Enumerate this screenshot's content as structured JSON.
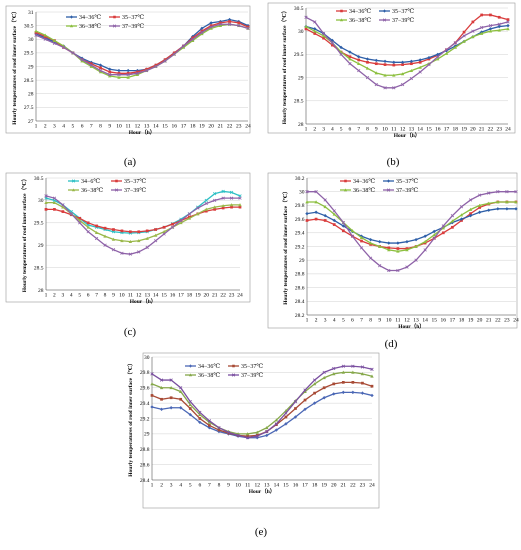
{
  "figure": {
    "panel_labels": [
      "(a)",
      "(b)",
      "(c)",
      "(d)",
      "(e)"
    ]
  },
  "colors": {
    "34_36": "#2e5fa8",
    "35_37": "#d93c3c",
    "36_38": "#8cbf3f",
    "37_39": "#8e62a8",
    "c_s1": "#2bbfc4",
    "c_s2": "#d93c3c",
    "c_s3": "#9ab84a",
    "c_s4": "#8e62a8",
    "e_s1": "#4a67b5",
    "e_s2": "#a84a35",
    "e_s3": "#86a84a",
    "e_s4": "#7a4fa0"
  },
  "chart_data": [
    {
      "panel": "(a)",
      "type": "line",
      "xlabel": "Hour（h）",
      "ylabel": "Hourly temperatures of roof inner surface（℃）",
      "x": [
        1,
        2,
        3,
        4,
        5,
        6,
        7,
        8,
        9,
        10,
        11,
        12,
        13,
        14,
        15,
        16,
        17,
        18,
        19,
        20,
        21,
        22,
        23,
        24
      ],
      "ylim": [
        27,
        31
      ],
      "yticks": [
        "27",
        "27.5",
        "28",
        "28.5",
        "29",
        "29.5",
        "30",
        "30.5",
        "31"
      ],
      "grid": true,
      "legend_position": "top-left",
      "series": [
        {
          "name": "34−36℃",
          "color_key": "34_36",
          "marker": "diamond",
          "values": [
            30.2,
            30.05,
            29.9,
            29.75,
            29.5,
            29.3,
            29.15,
            29.05,
            28.9,
            28.85,
            28.85,
            28.85,
            28.9,
            29.05,
            29.25,
            29.5,
            29.75,
            30.1,
            30.4,
            30.6,
            30.65,
            30.72,
            30.65,
            30.5
          ]
        },
        {
          "name": "35−37℃",
          "color_key": "35_37",
          "marker": "square",
          "values": [
            30.25,
            30.1,
            29.95,
            29.7,
            29.5,
            29.25,
            29.1,
            28.95,
            28.8,
            28.75,
            28.75,
            28.8,
            28.9,
            29.05,
            29.25,
            29.5,
            29.75,
            30.05,
            30.3,
            30.5,
            30.6,
            30.65,
            30.6,
            30.45
          ]
        },
        {
          "name": "36−38℃",
          "color_key": "36_38",
          "marker": "triangle",
          "values": [
            30.3,
            30.15,
            29.95,
            29.75,
            29.5,
            29.2,
            29.0,
            28.8,
            28.65,
            28.6,
            28.6,
            28.7,
            28.85,
            29.0,
            29.2,
            29.45,
            29.7,
            29.95,
            30.2,
            30.4,
            30.5,
            30.55,
            30.5,
            30.4
          ]
        },
        {
          "name": "37−39℃",
          "color_key": "37_39",
          "marker": "x",
          "values": [
            30.15,
            30.0,
            29.85,
            29.7,
            29.5,
            29.25,
            29.05,
            28.85,
            28.7,
            28.7,
            28.7,
            28.75,
            28.85,
            29.0,
            29.2,
            29.45,
            29.75,
            30.0,
            30.25,
            30.45,
            30.55,
            30.55,
            30.5,
            30.4
          ]
        }
      ]
    },
    {
      "panel": "(b)",
      "type": "line",
      "xlabel": "Hour（h）",
      "ylabel": "Hourly temperatures of roof inner surface（℃）",
      "x": [
        1,
        2,
        3,
        4,
        5,
        6,
        7,
        8,
        9,
        10,
        11,
        12,
        13,
        14,
        15,
        16,
        17,
        18,
        19,
        20,
        21,
        22,
        23,
        24
      ],
      "ylim": [
        28,
        30.5
      ],
      "yticks": [
        "28",
        "28.5",
        "29",
        "29.5",
        "30",
        "30.5"
      ],
      "grid": true,
      "legend_position": "top-center",
      "series": [
        {
          "name": "34−36℃",
          "color_key": "35_37",
          "marker": "square",
          "values": [
            30.05,
            29.95,
            29.85,
            29.7,
            29.55,
            29.45,
            29.38,
            29.33,
            29.3,
            29.28,
            29.27,
            29.28,
            29.3,
            29.33,
            29.4,
            29.48,
            29.6,
            29.75,
            29.98,
            30.2,
            30.35,
            30.35,
            30.3,
            30.25
          ]
        },
        {
          "name": "35−37℃",
          "color_key": "34_36",
          "marker": "diamond",
          "values": [
            30.1,
            30.05,
            29.95,
            29.8,
            29.65,
            29.55,
            29.45,
            29.4,
            29.37,
            29.35,
            29.33,
            29.33,
            29.35,
            29.38,
            29.43,
            29.5,
            29.58,
            29.68,
            29.78,
            29.88,
            29.98,
            30.05,
            30.1,
            30.12
          ]
        },
        {
          "name": "36−38℃",
          "color_key": "36_38",
          "marker": "triangle",
          "values": [
            30.1,
            30.0,
            29.9,
            29.75,
            29.55,
            29.4,
            29.3,
            29.2,
            29.1,
            29.05,
            29.05,
            29.08,
            29.15,
            29.22,
            29.3,
            29.4,
            29.52,
            29.65,
            29.78,
            29.88,
            29.95,
            30.0,
            30.02,
            30.05
          ]
        },
        {
          "name": "37−39℃",
          "color_key": "37_39",
          "marker": "x",
          "values": [
            30.3,
            30.2,
            29.95,
            29.75,
            29.5,
            29.3,
            29.15,
            29.0,
            28.85,
            28.78,
            28.78,
            28.85,
            28.98,
            29.12,
            29.28,
            29.45,
            29.6,
            29.75,
            29.9,
            30.0,
            30.08,
            30.12,
            30.15,
            30.2
          ]
        }
      ]
    },
    {
      "panel": "(c)",
      "type": "line",
      "xlabel": "Hour（h）",
      "ylabel": "Hourly temperatures of roof inner surface（℃）",
      "x": [
        1,
        2,
        3,
        4,
        5,
        6,
        7,
        8,
        9,
        10,
        11,
        12,
        13,
        14,
        15,
        16,
        17,
        18,
        19,
        20,
        21,
        22,
        23,
        24
      ],
      "ylim": [
        28,
        30.5
      ],
      "yticks": [
        "28",
        "28.5",
        "29",
        "29.5",
        "30",
        "30.5"
      ],
      "grid": true,
      "legend_position": "top-center",
      "series": [
        {
          "name": "34−6℃",
          "color_key": "c_s1",
          "marker": "x",
          "values": [
            30.05,
            30.0,
            29.9,
            29.75,
            29.6,
            29.45,
            29.4,
            29.35,
            29.3,
            29.28,
            29.27,
            29.28,
            29.3,
            29.35,
            29.4,
            29.48,
            29.58,
            29.7,
            29.85,
            30.0,
            30.15,
            30.2,
            30.18,
            30.1
          ]
        },
        {
          "name": "35−37℃",
          "color_key": "c_s2",
          "marker": "square",
          "values": [
            29.8,
            29.8,
            29.75,
            29.68,
            29.6,
            29.5,
            29.43,
            29.38,
            29.35,
            29.32,
            29.3,
            29.3,
            29.32,
            29.35,
            29.4,
            29.47,
            29.55,
            29.63,
            29.7,
            29.76,
            29.8,
            29.83,
            29.85,
            29.85
          ]
        },
        {
          "name": "36−38℃",
          "color_key": "c_s3",
          "marker": "triangle",
          "values": [
            29.95,
            29.95,
            29.85,
            29.7,
            29.55,
            29.4,
            29.28,
            29.2,
            29.13,
            29.1,
            29.08,
            29.1,
            29.15,
            29.22,
            29.3,
            29.4,
            29.5,
            29.6,
            29.7,
            29.8,
            29.85,
            29.88,
            29.9,
            29.9
          ]
        },
        {
          "name": "37−39℃",
          "color_key": "c_s4",
          "marker": "x",
          "values": [
            30.1,
            30.05,
            29.9,
            29.7,
            29.5,
            29.3,
            29.15,
            29.0,
            28.9,
            28.82,
            28.8,
            28.85,
            28.95,
            29.1,
            29.25,
            29.4,
            29.55,
            29.7,
            29.83,
            29.93,
            30.0,
            30.05,
            30.05,
            30.05
          ]
        }
      ]
    },
    {
      "panel": "(d)",
      "type": "line",
      "xlabel": "Hour（h）",
      "ylabel": "Hourly temperatures of roof inner surface（℃）",
      "x": [
        1,
        2,
        3,
        4,
        5,
        6,
        7,
        8,
        9,
        10,
        11,
        12,
        13,
        14,
        15,
        16,
        17,
        18,
        19,
        20,
        21,
        22,
        23,
        24
      ],
      "ylim": [
        28.2,
        30.2
      ],
      "yticks": [
        "28.2",
        "28.4",
        "28.6",
        "28.8",
        "29",
        "29.2",
        "29.4",
        "29.6",
        "29.8",
        "30",
        "30.2"
      ],
      "grid": true,
      "legend_position": "top-left",
      "series": [
        {
          "name": "34−36℃",
          "color_key": "35_37",
          "marker": "square",
          "values": [
            29.58,
            29.6,
            29.58,
            29.52,
            29.43,
            29.35,
            29.28,
            29.23,
            29.2,
            29.18,
            29.17,
            29.17,
            29.2,
            29.25,
            29.32,
            29.4,
            29.48,
            29.58,
            29.68,
            29.77,
            29.82,
            29.85,
            29.85,
            29.85
          ]
        },
        {
          "name": "35−37℃",
          "color_key": "34_36",
          "marker": "diamond",
          "values": [
            29.68,
            29.7,
            29.65,
            29.58,
            29.5,
            29.42,
            29.35,
            29.3,
            29.27,
            29.25,
            29.25,
            29.27,
            29.3,
            29.35,
            29.42,
            29.48,
            29.55,
            29.6,
            29.65,
            29.7,
            29.73,
            29.75,
            29.75,
            29.75
          ]
        },
        {
          "name": "36−38℃",
          "color_key": "36_38",
          "marker": "triangle",
          "values": [
            29.85,
            29.85,
            29.78,
            29.67,
            29.55,
            29.43,
            29.33,
            29.25,
            29.2,
            29.15,
            29.13,
            29.15,
            29.2,
            29.27,
            29.37,
            29.47,
            29.57,
            29.66,
            29.74,
            29.8,
            29.83,
            29.85,
            29.85,
            29.85
          ]
        },
        {
          "name": "37−39℃",
          "color_key": "37_39",
          "marker": "x",
          "values": [
            30.0,
            30.0,
            29.88,
            29.72,
            29.55,
            29.35,
            29.18,
            29.03,
            28.92,
            28.85,
            28.85,
            28.9,
            29.0,
            29.15,
            29.32,
            29.5,
            29.65,
            29.78,
            29.88,
            29.95,
            29.98,
            30.0,
            30.0,
            30.0
          ]
        }
      ]
    },
    {
      "panel": "(e)",
      "type": "line",
      "xlabel": "Hour（h）",
      "ylabel": "Hourly temperatures of roof inner surface（℃）",
      "x": [
        1,
        2,
        3,
        4,
        5,
        6,
        7,
        8,
        9,
        10,
        11,
        12,
        13,
        14,
        15,
        16,
        17,
        18,
        19,
        20,
        21,
        22,
        23,
        24
      ],
      "ylim": [
        28.4,
        30
      ],
      "yticks": [
        "28.4",
        "28.6",
        "28.8",
        "29",
        "29.2",
        "29.4",
        "29.6",
        "29.8",
        "30"
      ],
      "grid": true,
      "legend_position": "top-center",
      "series": [
        {
          "name": "34−36℃",
          "color_key": "e_s1",
          "marker": "diamond",
          "values": [
            29.35,
            29.32,
            29.34,
            29.34,
            29.25,
            29.15,
            29.08,
            29.03,
            29.0,
            28.97,
            28.95,
            28.95,
            28.98,
            29.05,
            29.13,
            29.22,
            29.32,
            29.4,
            29.47,
            29.52,
            29.54,
            29.54,
            29.53,
            29.5
          ]
        },
        {
          "name": "35−37℃",
          "color_key": "e_s2",
          "marker": "square",
          "values": [
            29.5,
            29.45,
            29.47,
            29.45,
            29.33,
            29.2,
            29.11,
            29.05,
            29.01,
            28.98,
            28.97,
            28.98,
            29.03,
            29.12,
            29.22,
            29.33,
            29.44,
            29.53,
            29.6,
            29.65,
            29.67,
            29.67,
            29.66,
            29.62
          ]
        },
        {
          "name": "36−38℃",
          "color_key": "e_s3",
          "marker": "triangle",
          "values": [
            29.65,
            29.6,
            29.6,
            29.55,
            29.38,
            29.25,
            29.15,
            29.08,
            29.03,
            29.0,
            29.0,
            29.02,
            29.08,
            29.18,
            29.3,
            29.43,
            29.55,
            29.65,
            29.73,
            29.78,
            29.8,
            29.8,
            29.78,
            29.75
          ]
        },
        {
          "name": "37−39℃",
          "color_key": "e_s4",
          "marker": "x",
          "values": [
            29.78,
            29.7,
            29.7,
            29.6,
            29.42,
            29.28,
            29.17,
            29.08,
            29.02,
            28.98,
            28.95,
            28.97,
            29.03,
            29.13,
            29.27,
            29.42,
            29.57,
            29.7,
            29.8,
            29.85,
            29.88,
            29.88,
            29.87,
            29.84
          ]
        }
      ]
    }
  ]
}
